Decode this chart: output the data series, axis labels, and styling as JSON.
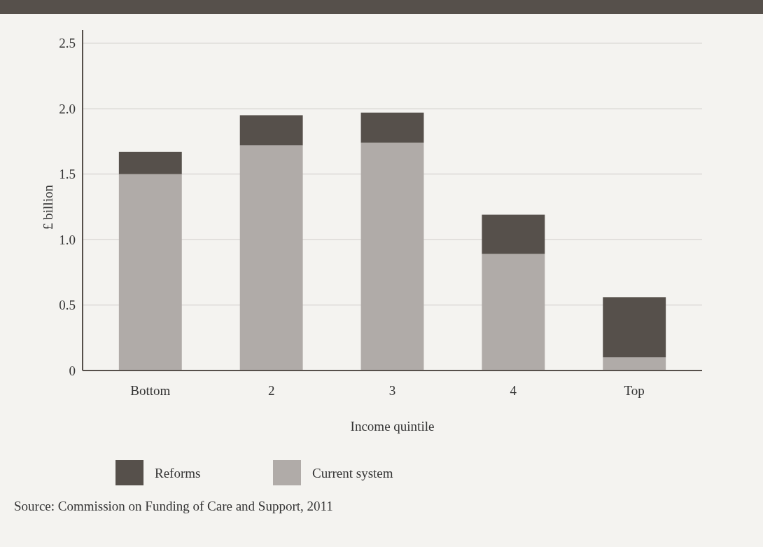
{
  "chart_data": {
    "type": "bar",
    "stacked": true,
    "categories": [
      "Bottom",
      "2",
      "3",
      "4",
      "Top"
    ],
    "series": [
      {
        "name": "Current system",
        "color": "#b0aba8",
        "values": [
          1.5,
          1.72,
          1.74,
          0.89,
          0.1
        ]
      },
      {
        "name": "Reforms",
        "color": "#56504b",
        "values": [
          0.17,
          0.23,
          0.23,
          0.3,
          0.46
        ]
      }
    ],
    "ylim": [
      0,
      2.6
    ],
    "yticks": [
      {
        "value": 0,
        "label": "0"
      },
      0.5,
      {
        "value": 1,
        "label": "1.0"
      },
      1.5,
      {
        "value": 2,
        "label": "2.0"
      },
      2.5
    ],
    "xlabel": "Income quintile",
    "ylabel": "£ billion",
    "grid": "y",
    "legend": "bottom",
    "annotations": [
      "Source: Commission on Funding of Care and Support, 2011"
    ]
  }
}
